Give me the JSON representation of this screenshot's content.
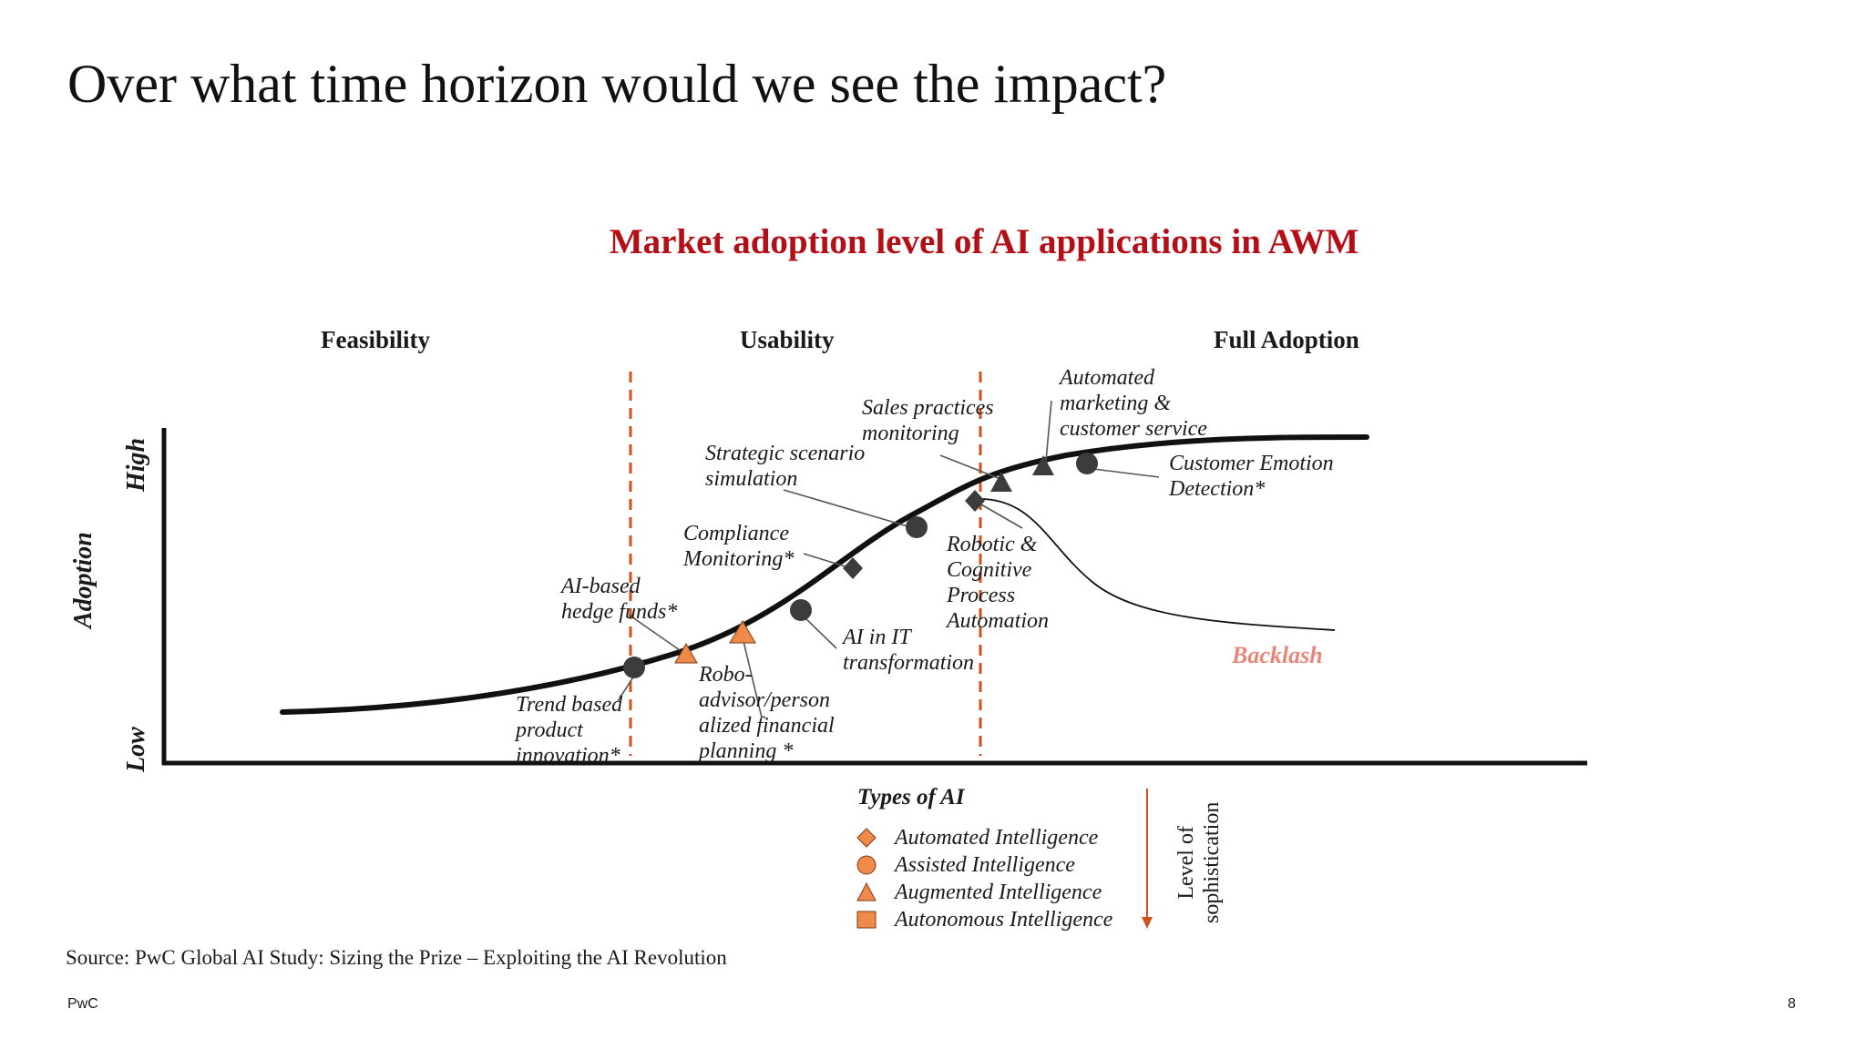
{
  "slide": {
    "title": "Over what time horizon would we see the impact?",
    "source": "Source: PwC Global AI Study: Sizing the Prize – Exploiting the AI Revolution",
    "brand": "PwC",
    "page_number": "8"
  },
  "chart": {
    "title": "Market adoption level of AI applications in AWM",
    "phases": [
      "Feasibility",
      "Usability",
      "Full Adoption"
    ],
    "y_axis_label": "Adoption",
    "y_high": "High",
    "y_low": "Low",
    "backlash_label": "Backlash"
  },
  "annotations": {
    "ai_hedge_funds": "AI-based\nhedge funds*",
    "trend_based": "Trend based\nproduct\ninnovation*",
    "robo_advisor": "Robo-\nadvisor/person\nalized financial\nplanning *",
    "compliance": "Compliance\nMonitoring*",
    "ai_in_it": "AI in IT\ntransformation",
    "strategic": "Strategic scenario\nsimulation",
    "sales_practices": "Sales practices\nmonitoring",
    "automated_marketing": "Automated\nmarketing &\ncustomer service",
    "customer_emotion": "Customer Emotion\nDetection*",
    "robotic": "Robotic &\nCognitive\nProcess\nAutomation"
  },
  "legend": {
    "title": "Types of AI",
    "items": [
      {
        "label": "Automated Intelligence",
        "shape": "diamond"
      },
      {
        "label": "Assisted Intelligence",
        "shape": "circle"
      },
      {
        "label": "Augmented Intelligence",
        "shape": "triangle"
      },
      {
        "label": "Autonomous Intelligence",
        "shape": "square"
      }
    ],
    "sophistication_label_line1": "Level of",
    "sophistication_label_line2": "sophistication"
  },
  "colors": {
    "title_red": "#b40f16",
    "orange": "#f08a4b",
    "marker_dark": "#3c3c3c",
    "divider": "#d0501e",
    "backlash": "#e8867a"
  }
}
